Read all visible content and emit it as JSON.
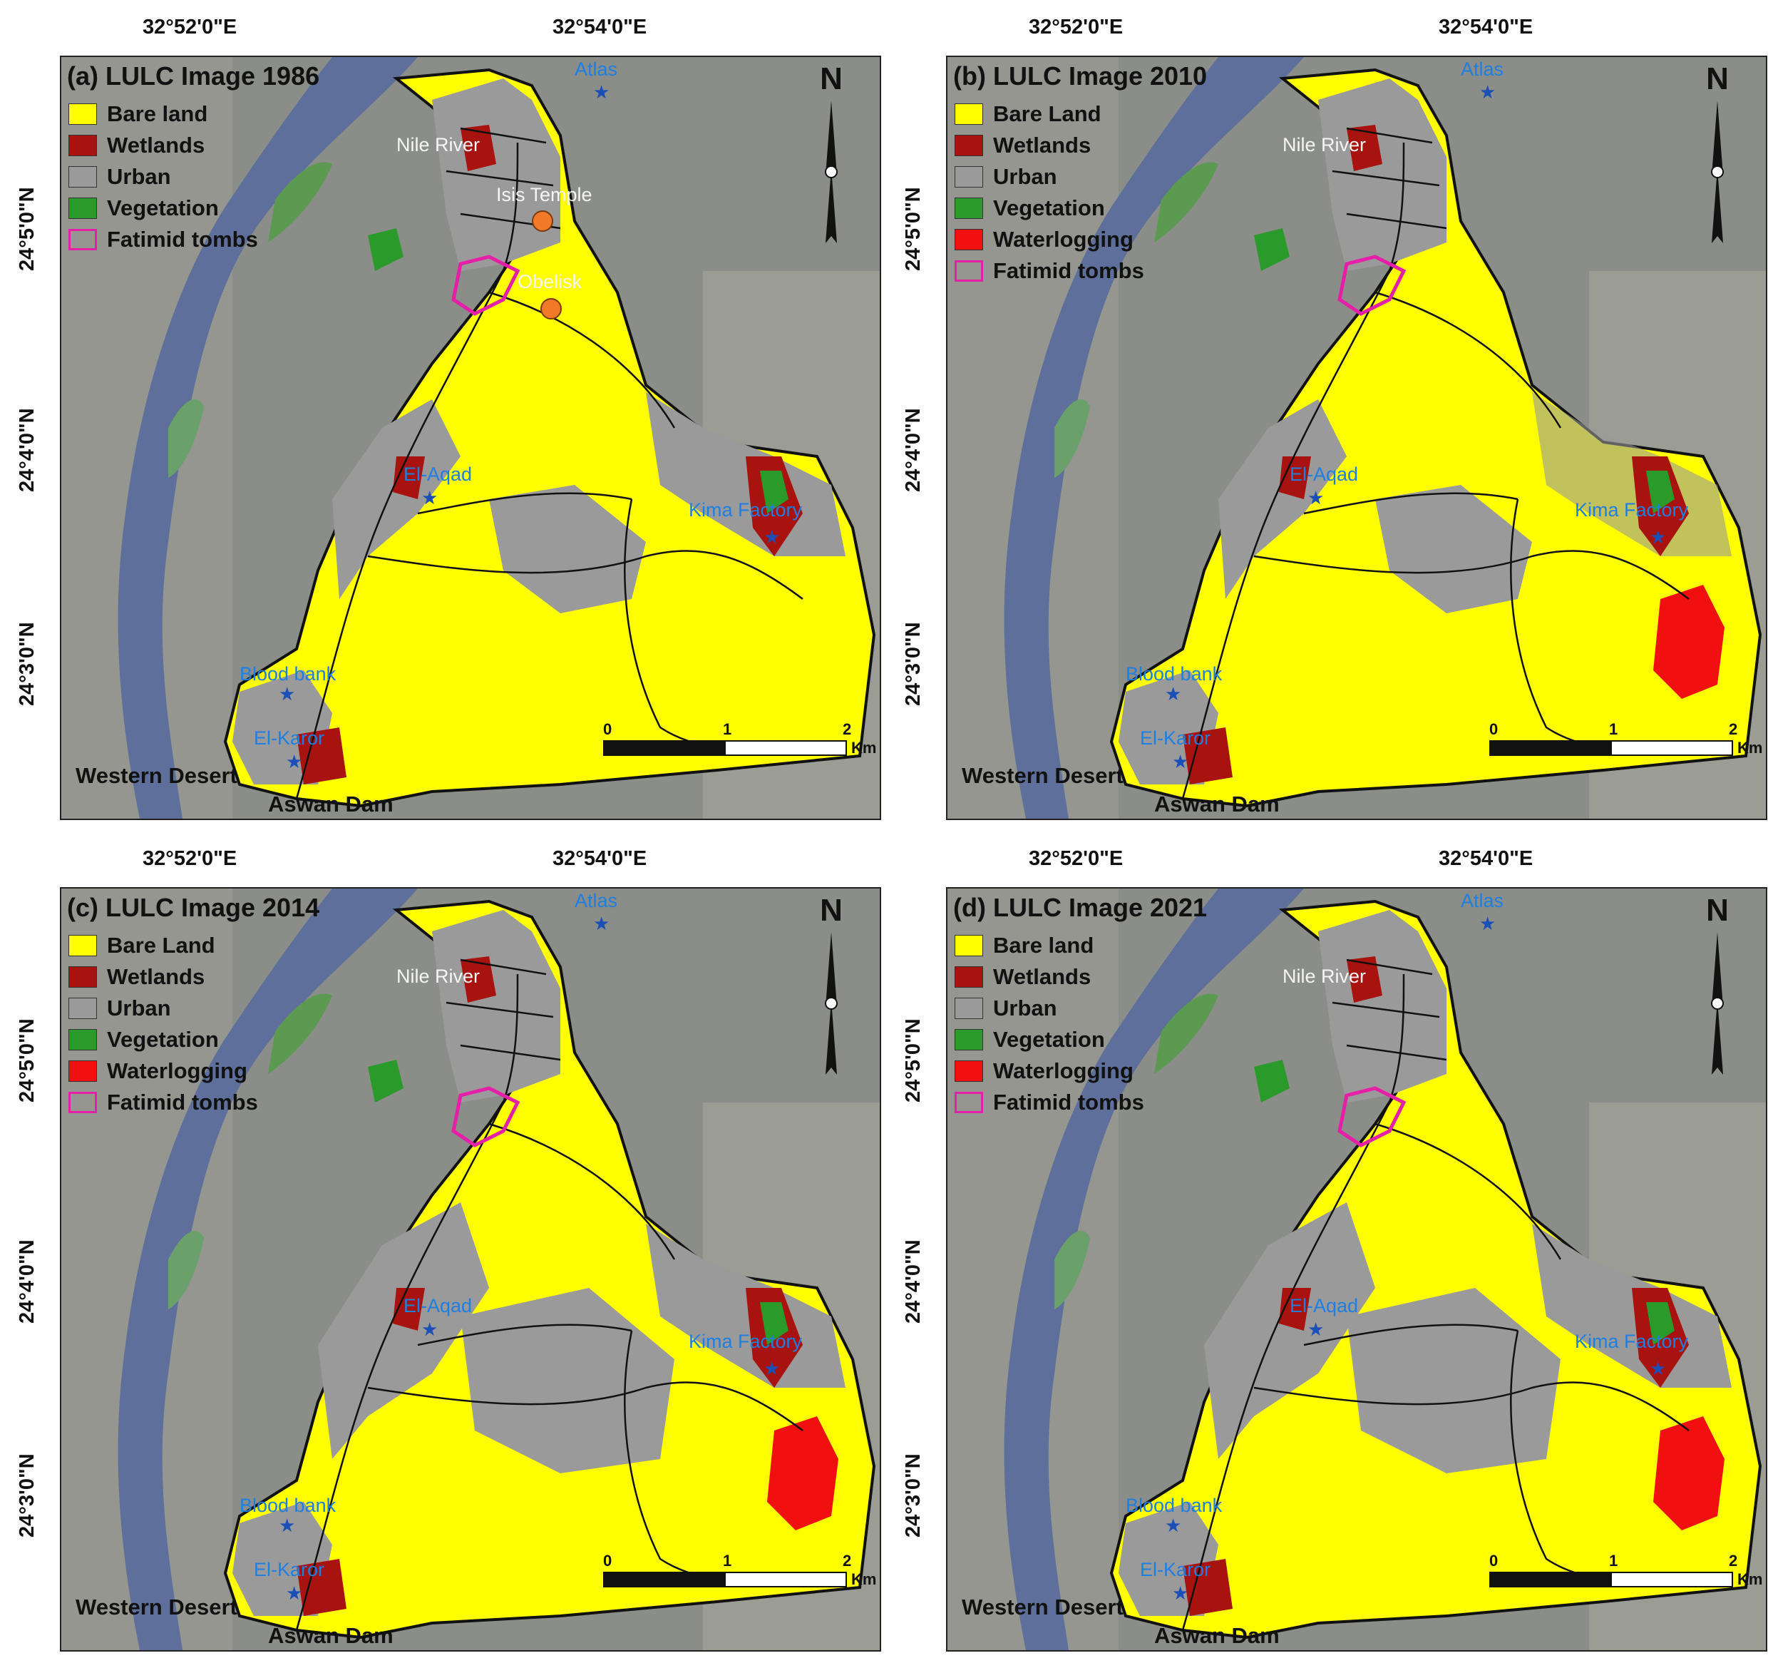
{
  "colors": {
    "bare_land": "#ffff00",
    "wetlands": "#a8120f",
    "urban": "#9a9a9a",
    "vegetation": "#2a9a2a",
    "waterlogging": "#f01010",
    "fatimid_tombs": "#e61fa8",
    "river": "#5d6f9a",
    "satellite": "#8a8d88",
    "label_blue": "#1f7fe0"
  },
  "lon_labels": [
    "32°52'0\"E",
    "32°54'0\"E"
  ],
  "lat_labels": [
    "24°5'0\"N",
    "24°4'0\"N",
    "24°3'0\"N"
  ],
  "place_labels": {
    "nile_river": "Nile River",
    "western_desert": "Western Desert",
    "aswan_dam": "Aswan Dam",
    "isis_temple": "Isis Temple",
    "obelisk": "Obelisk",
    "atlas": "Atlas",
    "el_aqad": "El-Aqad",
    "kima_factory": "Kima Factory",
    "blood_bank": "Blood bank",
    "el_karor": "El-Karor"
  },
  "north": "N",
  "scale": {
    "zero": "0",
    "one": "1",
    "two": "2",
    "unit": "Km"
  },
  "panels": [
    {
      "title": "(a) LULC Image 1986",
      "legend": [
        {
          "label": "Bare land",
          "key": "bare_land"
        },
        {
          "label": "Wetlands",
          "key": "wetlands"
        },
        {
          "label": "Urban",
          "key": "urban"
        },
        {
          "label": "Vegetation",
          "key": "vegetation"
        },
        {
          "label": "Fatimid tombs",
          "key": "fatimid_tombs"
        }
      ]
    },
    {
      "title": "(b) LULC Image 2010",
      "legend": [
        {
          "label": "Bare Land",
          "key": "bare_land"
        },
        {
          "label": "Wetlands",
          "key": "wetlands"
        },
        {
          "label": "Urban",
          "key": "urban"
        },
        {
          "label": "Vegetation",
          "key": "vegetation"
        },
        {
          "label": "Waterlogging",
          "key": "waterlogging"
        },
        {
          "label": "Fatimid tombs",
          "key": "fatimid_tombs"
        }
      ]
    },
    {
      "title": "(c) LULC Image 2014",
      "legend": [
        {
          "label": "Bare Land",
          "key": "bare_land"
        },
        {
          "label": "Wetlands",
          "key": "wetlands"
        },
        {
          "label": "Urban",
          "key": "urban"
        },
        {
          "label": "Vegetation",
          "key": "vegetation"
        },
        {
          "label": "Waterlogging",
          "key": "waterlogging"
        },
        {
          "label": "Fatimid tombs",
          "key": "fatimid_tombs"
        }
      ]
    },
    {
      "title": "(d) LULC Image 2021",
      "legend": [
        {
          "label": "Bare land",
          "key": "bare_land"
        },
        {
          "label": "Wetlands",
          "key": "wetlands"
        },
        {
          "label": "Urban",
          "key": "urban"
        },
        {
          "label": "Vegetation",
          "key": "vegetation"
        },
        {
          "label": "Waterlogging",
          "key": "waterlogging"
        },
        {
          "label": "Fatimid tombs",
          "key": "fatimid_tombs"
        }
      ]
    }
  ]
}
